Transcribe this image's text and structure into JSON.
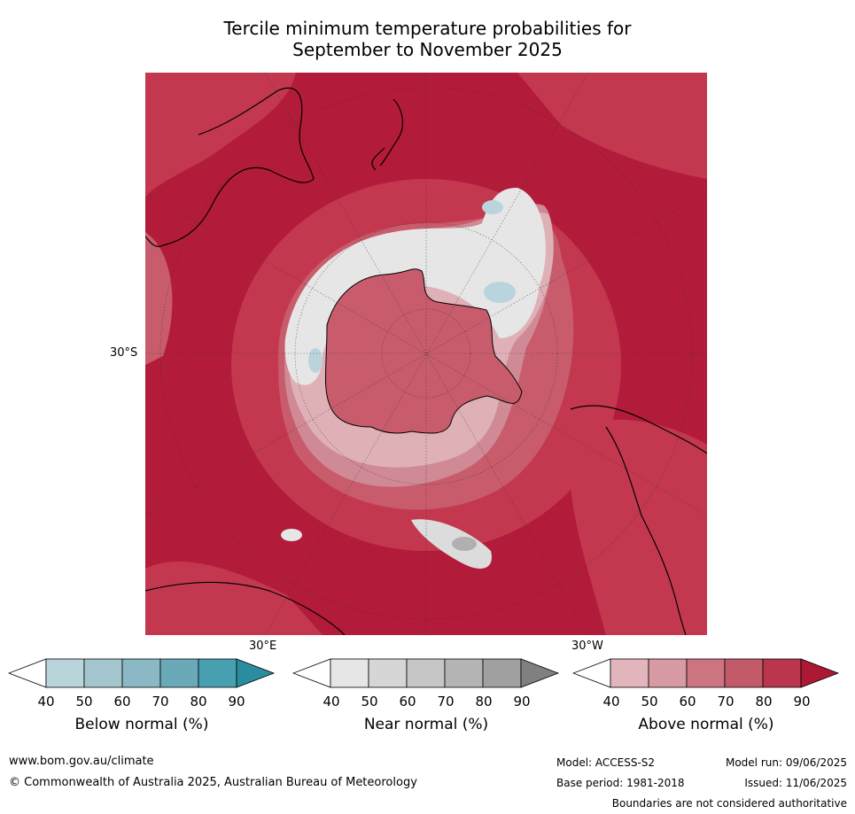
{
  "title_line1": "Tercile minimum temperature probabilities for",
  "title_line2": "September to November 2025",
  "map": {
    "lat_label": "30°S",
    "lon_label_east": "30°E",
    "lon_label_west": "30°W",
    "colors": {
      "above_90": "#b31b3a",
      "above_80": "#c3384f",
      "above_70": "#c85c6c",
      "above_60": "#d08a95",
      "above_50": "#dfb1b7",
      "near": "#e6e6e6",
      "near_dark": "#b0b0b0",
      "below": "#b9d4dc"
    }
  },
  "colorbars": [
    {
      "label": "Below normal (%)",
      "ticks": [
        "40",
        "50",
        "60",
        "70",
        "80",
        "90"
      ],
      "colors": [
        "#ffffff",
        "#bad4db",
        "#a3c6ce",
        "#8ab8c4",
        "#6aaab8",
        "#46a0b0",
        "#2a8d9f"
      ]
    },
    {
      "label": "Near normal (%)",
      "ticks": [
        "40",
        "50",
        "60",
        "70",
        "80",
        "90"
      ],
      "colors": [
        "#ffffff",
        "#e6e6e6",
        "#d6d6d6",
        "#c6c6c6",
        "#b4b4b4",
        "#a0a0a0",
        "#808080"
      ]
    },
    {
      "label": "Above normal (%)",
      "ticks": [
        "40",
        "50",
        "60",
        "70",
        "80",
        "90"
      ],
      "colors": [
        "#ffffff",
        "#e2b6bc",
        "#d89aa3",
        "#cc7480",
        "#c35a6a",
        "#b9364c",
        "#ad1834"
      ]
    }
  ],
  "footer": {
    "website": "www.bom.gov.au/climate",
    "copyright": "© Commonwealth of Australia 2025, Australian Bureau of Meteorology",
    "model": "Model: ACCESS-S2",
    "base_period": "Base period: 1981-2018",
    "model_run": "Model run: 09/06/2025",
    "issued": "Issued: 11/06/2025",
    "disclaimer": "Boundaries are not considered authoritative"
  }
}
